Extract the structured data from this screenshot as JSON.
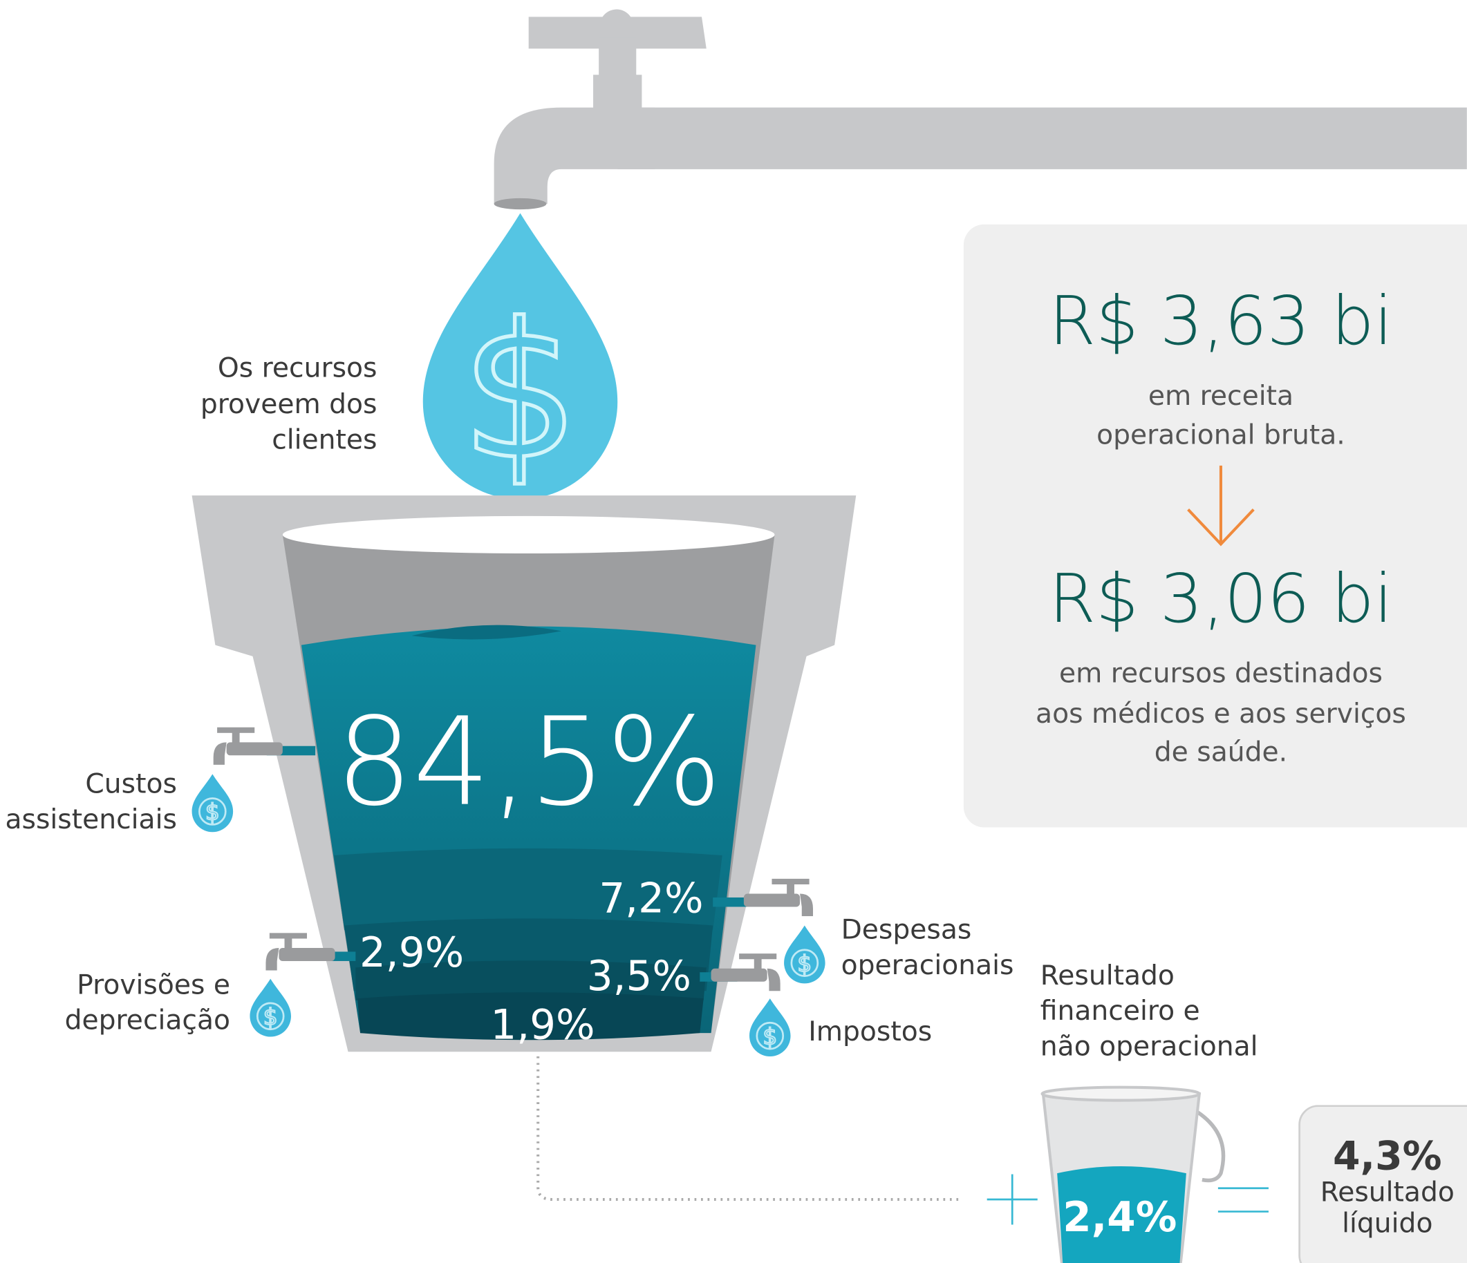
{
  "source_label": [
    "Os recursos",
    "proveem dos",
    "clientes"
  ],
  "summary": {
    "revenue": {
      "amount": "R$ 3,63 bi",
      "description": [
        "em receita",
        "operacional bruta."
      ]
    },
    "allocated": {
      "amount": "R$ 3,06 bi",
      "description": [
        "em recursos destinados",
        "aos médicos e aos serviços",
        "de saúde."
      ]
    }
  },
  "main_share": {
    "percent": "84,5%",
    "label": [
      "Custos",
      "assistenciais"
    ]
  },
  "outflows": [
    {
      "percent": "7,2%",
      "label": [
        "Despesas",
        "operacionais"
      ]
    },
    {
      "percent": "2,9%",
      "label": [
        "Provisões e",
        "depreciação"
      ]
    },
    {
      "percent": "3,5%",
      "label": [
        "Impostos"
      ]
    },
    {
      "percent": "1,9%"
    }
  ],
  "financial_result": {
    "label": [
      "Resultado",
      "financeiro e",
      "não operacional"
    ],
    "percent": "2,4%"
  },
  "net_result": {
    "percent": "4,3%",
    "label": [
      "Resultado",
      "líquido"
    ]
  }
}
